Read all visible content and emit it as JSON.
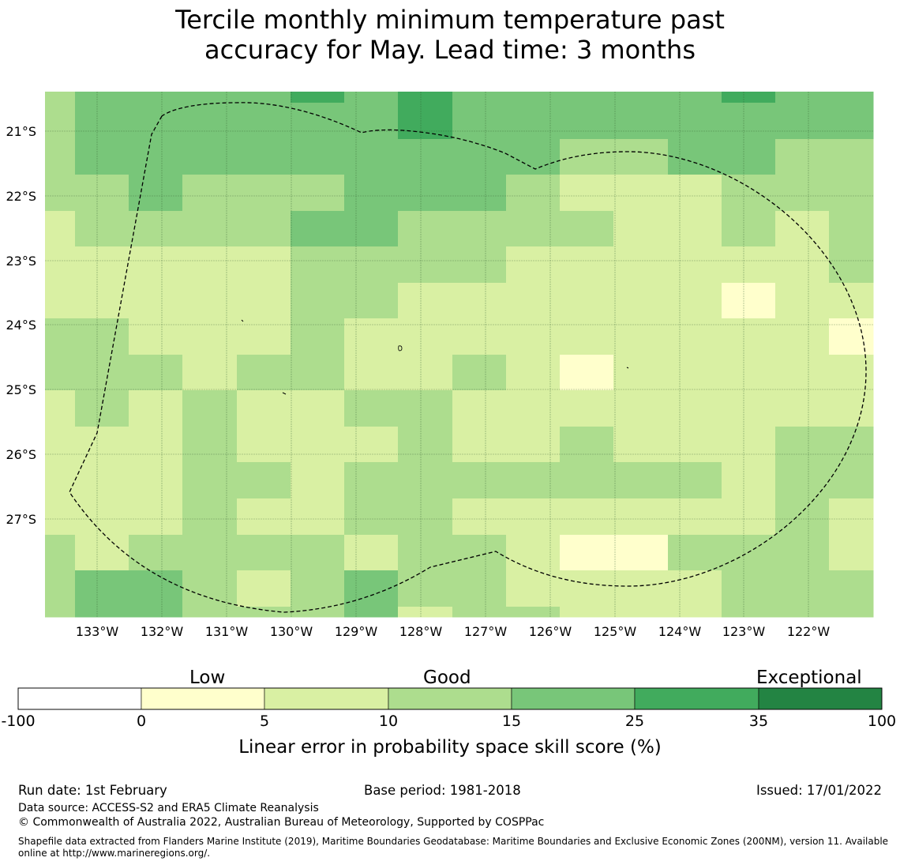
{
  "title_lines": [
    "Tercile monthly minimum temperature past",
    "accuracy for May. Lead time: 3 months"
  ],
  "map": {
    "lat_labels": [
      "21°S",
      "22°S",
      "23°S",
      "24°S",
      "25°S",
      "26°S",
      "27°S"
    ],
    "lon_labels": [
      "133°W",
      "132°W",
      "131°W",
      "130°W",
      "129°W",
      "128°W",
      "127°W",
      "126°W",
      "125°W",
      "124°W",
      "123°W",
      "122°W"
    ],
    "boundary": "Exclusive Economic Zone (200NM) dashed outline"
  },
  "colorbar": {
    "category_labels": [
      "Low",
      "Good",
      "Exceptional"
    ],
    "ticks": [
      "-100",
      "0",
      "5",
      "10",
      "15",
      "25",
      "35",
      "100"
    ],
    "colors": [
      "#ffffff",
      "#ffffcc",
      "#d9f0a3",
      "#addd8e",
      "#78c679",
      "#41ab5d",
      "#238443"
    ],
    "title": "Linear error in probability space skill score (%)"
  },
  "chart_data": {
    "type": "heatmap",
    "title": "Tercile monthly minimum temperature past accuracy for May. Lead time: 3 months",
    "legend_title": "Linear error in probability space skill score (%)",
    "class_bounds": [
      -100,
      0,
      5,
      10,
      15,
      25,
      35,
      100
    ],
    "class_legend": [
      "-100–0",
      "0–5",
      "5–10",
      "10–15",
      "15–25",
      "25–35",
      "35–100"
    ],
    "grid_note": "cells give skill class index (0 = -100–0 … 6 = 35–100); rows run north to south, columns west to east",
    "grid": [
      [
        3,
        4,
        4,
        4,
        4,
        5,
        4,
        5,
        4,
        4,
        4,
        4,
        4,
        5,
        4,
        4
      ],
      [
        3,
        4,
        4,
        4,
        4,
        4,
        4,
        5,
        4,
        4,
        4,
        4,
        4,
        4,
        4,
        4
      ],
      [
        3,
        4,
        4,
        4,
        4,
        4,
        4,
        4,
        4,
        4,
        3,
        3,
        4,
        4,
        3,
        3
      ],
      [
        3,
        3,
        4,
        3,
        3,
        3,
        4,
        4,
        4,
        3,
        2,
        2,
        2,
        3,
        3,
        3
      ],
      [
        2,
        3,
        3,
        3,
        3,
        4,
        4,
        3,
        3,
        3,
        3,
        2,
        2,
        3,
        2,
        3
      ],
      [
        2,
        2,
        2,
        2,
        2,
        3,
        3,
        3,
        3,
        2,
        2,
        2,
        2,
        2,
        2,
        3
      ],
      [
        2,
        2,
        2,
        2,
        2,
        3,
        3,
        2,
        2,
        2,
        2,
        2,
        2,
        1,
        2,
        2
      ],
      [
        3,
        3,
        2,
        2,
        2,
        3,
        2,
        2,
        2,
        2,
        2,
        2,
        2,
        2,
        2,
        1
      ],
      [
        3,
        3,
        3,
        2,
        3,
        3,
        2,
        2,
        3,
        2,
        1,
        2,
        2,
        2,
        2,
        2
      ],
      [
        2,
        3,
        2,
        3,
        2,
        2,
        3,
        3,
        2,
        2,
        2,
        2,
        2,
        2,
        2,
        2
      ],
      [
        2,
        2,
        2,
        3,
        2,
        2,
        2,
        3,
        2,
        2,
        3,
        2,
        2,
        2,
        3,
        3
      ],
      [
        2,
        2,
        2,
        3,
        3,
        2,
        3,
        3,
        3,
        3,
        3,
        3,
        3,
        2,
        3,
        3
      ],
      [
        2,
        2,
        2,
        3,
        2,
        2,
        3,
        3,
        2,
        2,
        2,
        2,
        2,
        2,
        3,
        2
      ],
      [
        3,
        2,
        3,
        3,
        3,
        3,
        2,
        3,
        3,
        2,
        1,
        1,
        3,
        3,
        3,
        2
      ],
      [
        3,
        4,
        4,
        3,
        2,
        3,
        4,
        3,
        3,
        2,
        2,
        2,
        2,
        3,
        3,
        3
      ],
      [
        3,
        4,
        4,
        3,
        3,
        3,
        4,
        2,
        3,
        3,
        2,
        2,
        2,
        3,
        3,
        3
      ]
    ]
  },
  "footer": {
    "run_date": "Run date: 1st February",
    "base_period": "Base period: 1981-2018",
    "issued": "Issued: 17/01/2022",
    "data_source": "Data source: ACCESS-S2 and ERA5 Climate Reanalysis",
    "copyright": "© Commonwealth of Australia 2022, Australian Bureau of Meteorology, Supported by COSPPac",
    "shapefile_1": "Shapefile data extracted from Flanders Marine Institute (2019), Maritime Boundaries Geodatabase: Maritime Boundaries and Exclusive Economic Zones (200NM), version 11. Available",
    "shapefile_2": "online at http://www.marineregions.org/."
  }
}
